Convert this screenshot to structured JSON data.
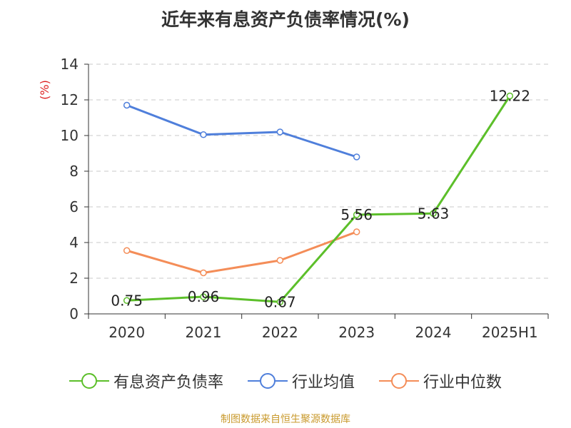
{
  "chart_data": {
    "type": "line",
    "title": "近年来有息资产负债率情况(%)",
    "ylabel": "(%)",
    "xlabel": "",
    "categories": [
      "2020",
      "2021",
      "2022",
      "2023",
      "2024",
      "2025H1"
    ],
    "ylim": [
      0,
      14
    ],
    "yticks": [
      0,
      2,
      4,
      6,
      8,
      10,
      12,
      14
    ],
    "grid": true,
    "legend_position": "bottom",
    "series": [
      {
        "name": "有息资产负债率",
        "color": "#5cbf2a",
        "values": [
          0.75,
          0.96,
          0.67,
          5.56,
          5.63,
          12.22
        ],
        "data_labels": [
          "0.75",
          "0.96",
          "0.67",
          "5.56",
          "5.63",
          "12.22"
        ]
      },
      {
        "name": "行业均值",
        "color": "#4f7fdb",
        "values": [
          11.7,
          10.05,
          10.2,
          8.8,
          null,
          null
        ]
      },
      {
        "name": "行业中位数",
        "color": "#f48d58",
        "values": [
          3.55,
          2.3,
          3.0,
          4.6,
          null,
          null
        ]
      }
    ]
  },
  "source": "制图数据来自恒生聚源数据库"
}
